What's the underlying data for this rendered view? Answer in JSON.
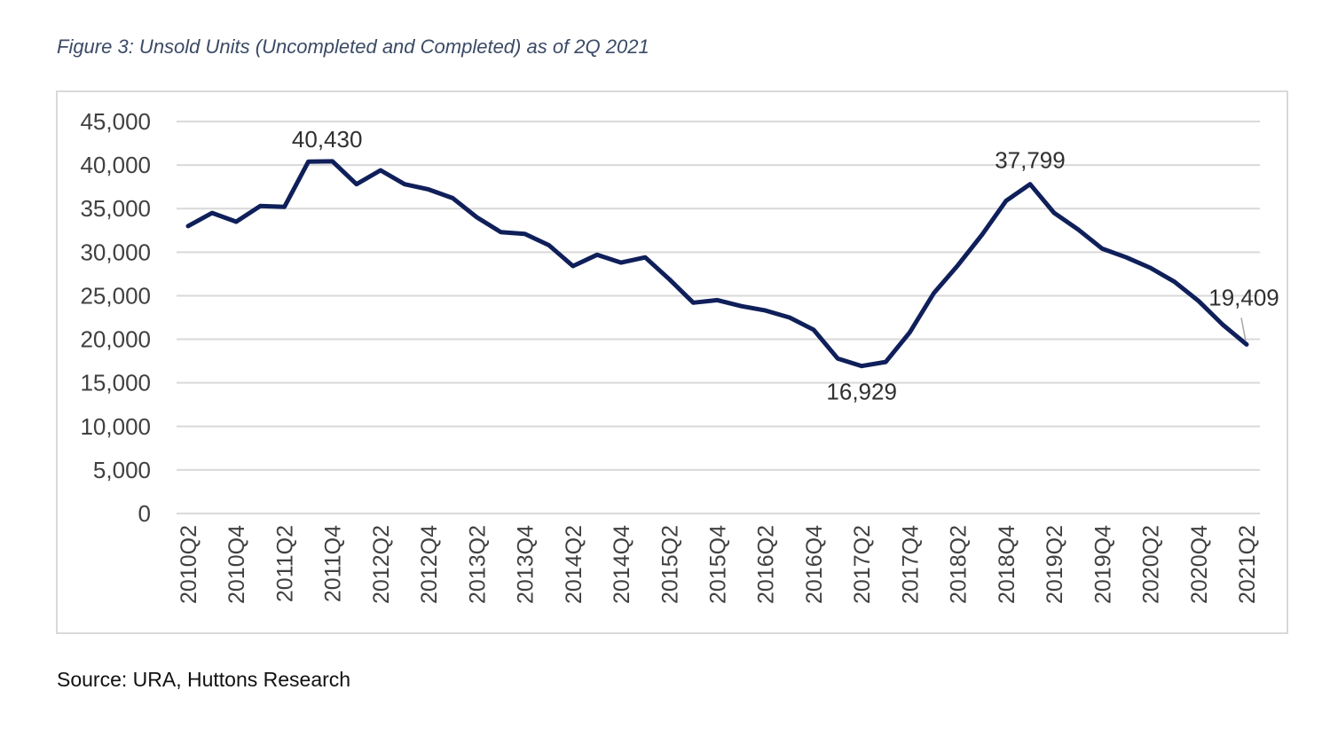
{
  "figure_title": "Figure 3: Unsold Units (Uncompleted and Completed) as of 2Q 2021",
  "source": "Source: URA, Huttons Research",
  "colors": {
    "line": "#0f1f5a",
    "grid": "#d9d9d9",
    "text": "#404040"
  },
  "chart_data": {
    "type": "line",
    "title": "",
    "xlabel": "",
    "ylabel": "",
    "ylim": [
      0,
      45000
    ],
    "yticks": [
      0,
      5000,
      10000,
      15000,
      20000,
      25000,
      30000,
      35000,
      40000,
      45000
    ],
    "ytick_labels": [
      "0",
      "5,000",
      "10,000",
      "15,000",
      "20,000",
      "25,000",
      "30,000",
      "35,000",
      "40,000",
      "45,000"
    ],
    "grid": true,
    "legend": "none",
    "x": [
      "2010Q2",
      "2010Q3",
      "2010Q4",
      "2011Q1",
      "2011Q2",
      "2011Q3",
      "2011Q4",
      "2012Q1",
      "2012Q2",
      "2012Q3",
      "2012Q4",
      "2013Q1",
      "2013Q2",
      "2013Q3",
      "2013Q4",
      "2014Q1",
      "2014Q2",
      "2014Q3",
      "2014Q4",
      "2015Q1",
      "2015Q2",
      "2015Q3",
      "2015Q4",
      "2016Q1",
      "2016Q2",
      "2016Q3",
      "2016Q4",
      "2017Q1",
      "2017Q2",
      "2017Q3",
      "2017Q4",
      "2018Q1",
      "2018Q2",
      "2018Q3",
      "2018Q4",
      "2019Q1",
      "2019Q2",
      "2019Q3",
      "2019Q4",
      "2020Q1",
      "2020Q2",
      "2020Q3",
      "2020Q4",
      "2021Q1",
      "2021Q2"
    ],
    "x_tick_labels": [
      "2010Q2",
      "2010Q4",
      "2011Q2",
      "2011Q4",
      "2012Q2",
      "2012Q4",
      "2013Q2",
      "2013Q4",
      "2014Q2",
      "2014Q4",
      "2015Q2",
      "2015Q4",
      "2016Q2",
      "2016Q4",
      "2017Q2",
      "2017Q4",
      "2018Q2",
      "2018Q4",
      "2019Q2",
      "2019Q4",
      "2020Q2",
      "2020Q4",
      "2021Q2"
    ],
    "series": [
      {
        "values": [
          33000,
          34500,
          33500,
          35300,
          35200,
          40400,
          40430,
          37800,
          39400,
          37800,
          37200,
          36200,
          34000,
          32300,
          32100,
          30800,
          28400,
          29700,
          28800,
          29400,
          26900,
          24200,
          24500,
          23800,
          23300,
          22500,
          21100,
          17800,
          16929,
          17400,
          20800,
          25300,
          28500,
          32000,
          35900,
          37799,
          34500,
          32600,
          30400,
          29400,
          28200,
          26600,
          24400,
          21700,
          19409
        ]
      }
    ],
    "annotations": [
      {
        "x": "2011Q4",
        "value": 40430,
        "text": "40,430"
      },
      {
        "x": "2019Q1",
        "value": 37799,
        "text": "37,799"
      },
      {
        "x": "2017Q2",
        "value": 16929,
        "text": "16,929"
      },
      {
        "x": "2021Q2",
        "value": 19409,
        "text": "19,409"
      }
    ]
  }
}
